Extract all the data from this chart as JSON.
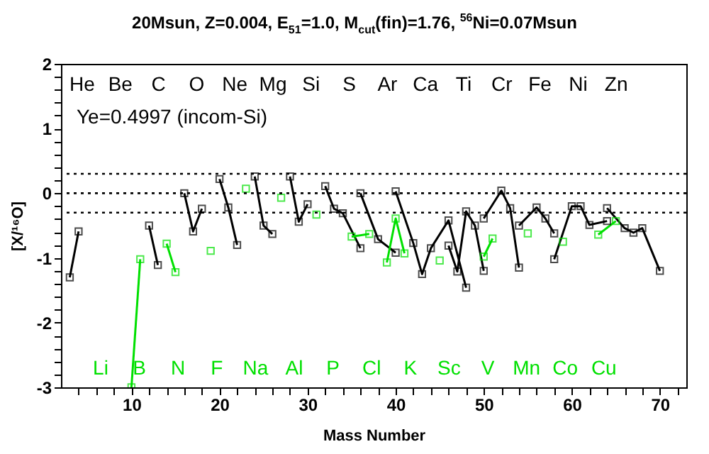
{
  "chart_data": {
    "type": "line",
    "title": "20Msun, Z=0.004, E$_{51}$=1.0, M$_{cut}$(fin)=1.76, $^{56}$Ni=0.07Msun",
    "xlabel": "Mass Number",
    "ylabel": "[X/¹⁶O]",
    "xlim": [
      2,
      73
    ],
    "ylim": [
      -3,
      2
    ],
    "xticks": [
      {
        "value": 4,
        "label": null
      },
      {
        "value": 6,
        "label": null
      },
      {
        "value": 8,
        "label": null
      },
      10,
      {
        "value": 12,
        "label": null
      },
      {
        "value": 14,
        "label": null
      },
      {
        "value": 16,
        "label": null
      },
      {
        "value": 18,
        "label": null
      },
      20,
      {
        "value": 22,
        "label": null
      },
      {
        "value": 24,
        "label": null
      },
      {
        "value": 26,
        "label": null
      },
      {
        "value": 28,
        "label": null
      },
      30,
      {
        "value": 32,
        "label": null
      },
      {
        "value": 34,
        "label": null
      },
      {
        "value": 36,
        "label": null
      },
      {
        "value": 38,
        "label": null
      },
      40,
      {
        "value": 42,
        "label": null
      },
      {
        "value": 44,
        "label": null
      },
      {
        "value": 46,
        "label": null
      },
      {
        "value": 48,
        "label": null
      },
      50,
      {
        "value": 52,
        "label": null
      },
      {
        "value": 54,
        "label": null
      },
      {
        "value": 56,
        "label": null
      },
      {
        "value": 58,
        "label": null
      },
      60,
      {
        "value": 62,
        "label": null
      },
      {
        "value": 64,
        "label": null
      },
      {
        "value": 66,
        "label": null
      },
      {
        "value": 68,
        "label": null
      },
      70,
      {
        "value": 72,
        "label": null
      }
    ],
    "yticks": [
      -3,
      {
        "value": -2.8,
        "label": null
      },
      {
        "value": -2.6,
        "label": null
      },
      {
        "value": -2.4,
        "label": null
      },
      {
        "value": -2.2,
        "label": null
      },
      -2,
      {
        "value": -1.8,
        "label": null
      },
      {
        "value": -1.6,
        "label": null
      },
      {
        "value": -1.4,
        "label": null
      },
      {
        "value": -1.2,
        "label": null
      },
      -1,
      {
        "value": -0.8,
        "label": null
      },
      {
        "value": -0.6,
        "label": null
      },
      {
        "value": -0.4,
        "label": null
      },
      {
        "value": -0.2,
        "label": null
      },
      0,
      {
        "value": 0.2,
        "label": null
      },
      {
        "value": 0.4,
        "label": null
      },
      {
        "value": 0.6,
        "label": null
      },
      {
        "value": 0.8,
        "label": null
      },
      1,
      {
        "value": 1.2,
        "label": null
      },
      {
        "value": 1.4,
        "label": null
      },
      {
        "value": 1.6,
        "label": null
      },
      {
        "value": 1.8,
        "label": null
      },
      2
    ],
    "grid": false,
    "legend": false,
    "marker": "square",
    "line_style": "solid",
    "ref_lines": [
      {
        "axis": "y",
        "value": 0.3,
        "line_style": "dotted"
      },
      {
        "axis": "y",
        "value": 0,
        "line_style": "dotted"
      },
      {
        "axis": "y",
        "value": -0.3,
        "line_style": "dotted"
      }
    ],
    "series": [
      {
        "color": "#000000",
        "x": [
          3,
          4
        ],
        "values": [
          -1.3,
          -0.59
        ]
      },
      {
        "color": "#00e000",
        "x": [
          10,
          11
        ],
        "values": [
          -3,
          -1.02
        ]
      },
      {
        "color": "#000000",
        "x": [
          12,
          13
        ],
        "values": [
          -0.5,
          -1.11
        ]
      },
      {
        "color": "#00e000",
        "x": [
          14,
          15
        ],
        "values": [
          -0.78,
          -1.22
        ]
      },
      {
        "color": "#000000",
        "x": [
          16,
          17,
          18
        ],
        "values": [
          0.0,
          -0.59,
          -0.24
        ]
      },
      {
        "color": "#00e000",
        "x": [
          19
        ],
        "values": [
          -0.89
        ]
      },
      {
        "color": "#000000",
        "x": [
          20,
          21,
          22
        ],
        "values": [
          0.22,
          -0.22,
          -0.8
        ]
      },
      {
        "color": "#00e000",
        "x": [
          23
        ],
        "values": [
          0.07
        ]
      },
      {
        "color": "#000000",
        "x": [
          24,
          25,
          26
        ],
        "values": [
          0.26,
          -0.5,
          -0.63
        ]
      },
      {
        "color": "#00e000",
        "x": [
          27
        ],
        "values": [
          -0.07
        ]
      },
      {
        "color": "#000000",
        "x": [
          28,
          29,
          30
        ],
        "values": [
          0.26,
          -0.44,
          -0.17
        ]
      },
      {
        "color": "#00e000",
        "x": [
          31
        ],
        "values": [
          -0.33
        ]
      },
      {
        "color": "#000000",
        "x": [
          32,
          33,
          34,
          36
        ],
        "values": [
          0.11,
          -0.24,
          -0.31,
          -0.85
        ]
      },
      {
        "color": "#00e000",
        "x": [
          35,
          37
        ],
        "values": [
          -0.67,
          -0.63
        ]
      },
      {
        "color": "#000000",
        "x": [
          36,
          38,
          40
        ],
        "values": [
          0.0,
          -0.71,
          -0.92
        ]
      },
      {
        "color": "#00e000",
        "x": [
          39,
          40,
          41
        ],
        "values": [
          -1.07,
          -0.39,
          -0.93
        ]
      },
      {
        "color": "#000000",
        "x": [
          40,
          42,
          43,
          44,
          46,
          48
        ],
        "values": [
          0.03,
          -0.77,
          -1.25,
          -0.85,
          -0.42,
          -1.46
        ]
      },
      {
        "color": "#00e000",
        "x": [
          45
        ],
        "values": [
          -1.04
        ]
      },
      {
        "color": "#000000",
        "x": [
          46,
          47,
          48,
          49,
          50
        ],
        "values": [
          -0.81,
          -1.21,
          -0.28,
          -0.5,
          -1.2
        ]
      },
      {
        "color": "#00e000",
        "x": [
          50,
          51
        ],
        "values": [
          -0.98,
          -0.7
        ]
      },
      {
        "color": "#000000",
        "x": [
          50,
          52,
          53,
          54
        ],
        "values": [
          -0.39,
          0.04,
          -0.23,
          -1.15
        ]
      },
      {
        "color": "#00e000",
        "x": [
          55
        ],
        "values": [
          -0.62
        ]
      },
      {
        "color": "#000000",
        "x": [
          54,
          56,
          57,
          58
        ],
        "values": [
          -0.5,
          -0.22,
          -0.39,
          -0.62
        ]
      },
      {
        "color": "#00e000",
        "x": [
          59
        ],
        "values": [
          -0.75
        ]
      },
      {
        "color": "#000000",
        "x": [
          58,
          60,
          61,
          62,
          64
        ],
        "values": [
          -1.02,
          -0.2,
          -0.2,
          -0.49,
          -0.43
        ]
      },
      {
        "color": "#00e000",
        "x": [
          63,
          65
        ],
        "values": [
          -0.64,
          -0.43
        ]
      },
      {
        "color": "#000000",
        "x": [
          64,
          66,
          67,
          68,
          70
        ],
        "values": [
          -0.23,
          -0.54,
          -0.61,
          -0.54,
          -1.2
        ]
      }
    ],
    "annotations": [
      "Ye=0.4997 (incom-Si)",
      "He",
      "Be",
      "C",
      "O",
      "Ne",
      "Mg",
      "Si",
      "S",
      "Ar",
      "Ca",
      "Ti",
      "Cr",
      "Fe",
      "Ni",
      "Zn",
      "Li",
      "B",
      "N",
      "F",
      "Na",
      "Al",
      "P",
      "Cl",
      "K",
      "Sc",
      "V",
      "Mn",
      "Co",
      "Cu"
    ]
  }
}
